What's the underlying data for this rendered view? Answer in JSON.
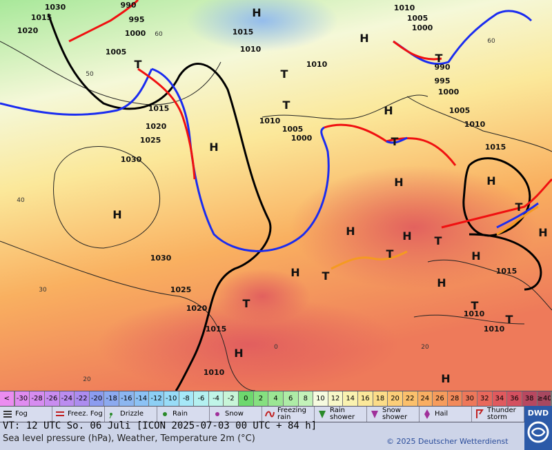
{
  "map": {
    "isobar_labels": [
      1015,
      1020,
      1030,
      990,
      995,
      1000,
      1005,
      1015,
      1020,
      1025,
      1030,
      1030,
      1025,
      1020,
      1015,
      1010,
      1015,
      1010,
      1010,
      1010,
      1005,
      1000,
      1010,
      1005,
      1000,
      990,
      995,
      1000,
      1005,
      1010,
      1015,
      1015,
      1010,
      1010
    ],
    "temperature_labels": [
      60,
      50,
      40,
      30,
      20,
      0,
      20,
      60
    ],
    "high_label": "H",
    "low_label": "T"
  },
  "temperature_scale": {
    "below_label": "<",
    "values": [
      -30,
      -28,
      -26,
      -24,
      -22,
      -20,
      -18,
      -16,
      -14,
      -12,
      -10,
      -8,
      -6,
      -4,
      -2,
      0,
      2,
      4,
      6,
      8,
      10,
      12,
      14,
      16,
      18,
      20,
      22,
      24,
      26,
      28,
      30,
      32,
      34,
      36,
      38
    ],
    "above_label": "≥40",
    "unit": "°C",
    "colors": [
      "#e08cf0",
      "#d68cf0",
      "#c98cf0",
      "#bb8cf0",
      "#ad8cf0",
      "#8c9cf0",
      "#8caaf0",
      "#8cb6f0",
      "#8cc2f5",
      "#8ccff5",
      "#98dcf8",
      "#a6e8f8",
      "#b4f0f0",
      "#c0f5e8",
      "#c8f5d8",
      "#6ed86e",
      "#86e080",
      "#9be693",
      "#aeeca6",
      "#c3f2b9",
      "#f6fbe0",
      "#f8f8c8",
      "#faf2b0",
      "#fbe89a",
      "#fcdc88",
      "#fcce78",
      "#fbc06c",
      "#f9ae62",
      "#f69c5c",
      "#f28a5a",
      "#ee785a",
      "#e8685c",
      "#e05a5e",
      "#d45060",
      "#b84860"
    ],
    "below_color": "#eb8cf0",
    "above_color": "#a84860"
  },
  "legend": [
    "Fog",
    "Freez. Fog",
    "Drizzle",
    "Rain",
    "Snow",
    "Freezing rain",
    "Rain shower",
    "Snow shower",
    "Hail",
    "Thunder storm"
  ],
  "footer": {
    "valid_time": "VT: 12 UTC So.  06 Juli [ICON 2025-07-03  00 UTC + 84 h]",
    "description": "Sea level pressure (hPa), Weather, Temperature 2m (°C)",
    "copyright": "© 2025 Deutscher Wetterdienst",
    "logo": "DWD"
  }
}
